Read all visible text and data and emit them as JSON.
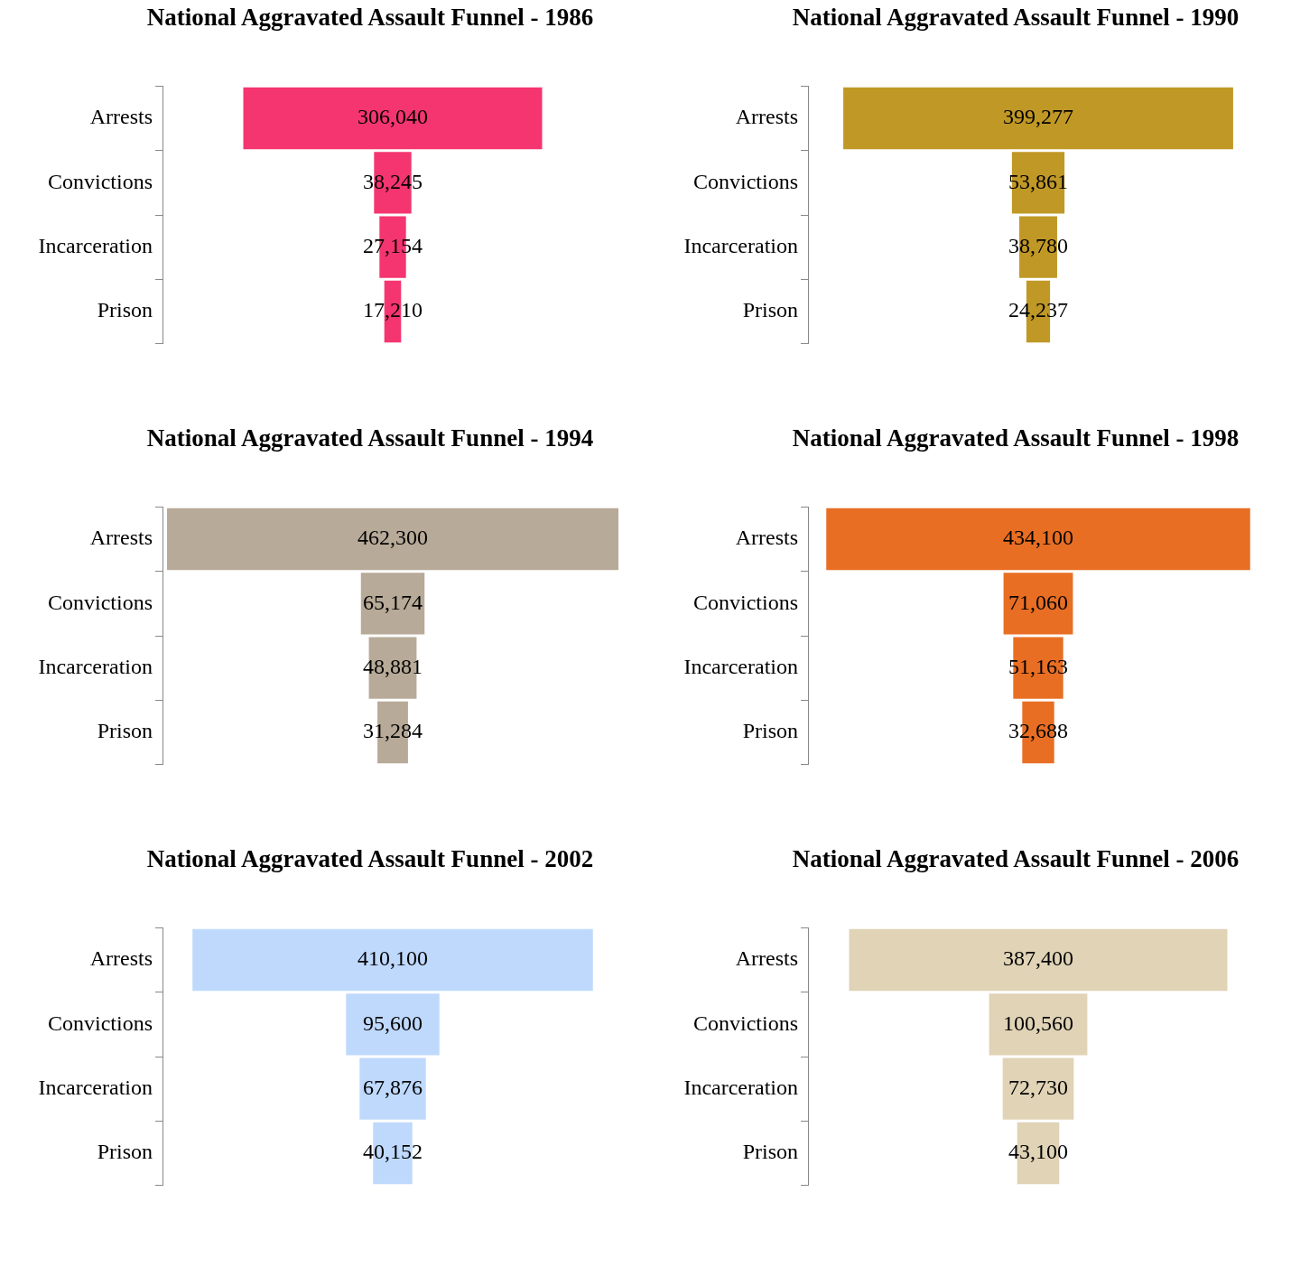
{
  "chart_data": [
    {
      "type": "other",
      "title": "National Aggravated Assault Funnel - 1986",
      "categories": [
        "Arrests",
        "Convictions",
        "Incarceration",
        "Prison"
      ],
      "values": [
        306040,
        38245,
        27154,
        17210
      ],
      "value_labels": [
        "306,040",
        "38,245",
        "27,154",
        "17,210"
      ],
      "color": "#f43570"
    },
    {
      "type": "other",
      "title": "National Aggravated Assault Funnel - 1990",
      "categories": [
        "Arrests",
        "Convictions",
        "Incarceration",
        "Prison"
      ],
      "values": [
        399277,
        53861,
        38780,
        24237
      ],
      "value_labels": [
        "399,277",
        "53,861",
        "38,780",
        "24,237"
      ],
      "color": "#c09826"
    },
    {
      "type": "other",
      "title": "National Aggravated Assault Funnel - 1994",
      "categories": [
        "Arrests",
        "Convictions",
        "Incarceration",
        "Prison"
      ],
      "values": [
        462300,
        65174,
        48881,
        31284
      ],
      "value_labels": [
        "462,300",
        "65,174",
        "48,881",
        "31,284"
      ],
      "color": "#b8aa98"
    },
    {
      "type": "other",
      "title": "National Aggravated Assault Funnel - 1998",
      "categories": [
        "Arrests",
        "Convictions",
        "Incarceration",
        "Prison"
      ],
      "values": [
        434100,
        71060,
        51163,
        32688
      ],
      "value_labels": [
        "434,100",
        "71,060",
        "51,163",
        "32,688"
      ],
      "color": "#e86e23"
    },
    {
      "type": "other",
      "title": "National Aggravated Assault Funnel - 2002",
      "categories": [
        "Arrests",
        "Convictions",
        "Incarceration",
        "Prison"
      ],
      "values": [
        410100,
        95600,
        67876,
        40152
      ],
      "value_labels": [
        "410,100",
        "95,600",
        "67,876",
        "40,152"
      ],
      "color": "#bfd9fd"
    },
    {
      "type": "other",
      "title": "National Aggravated Assault Funnel - 2006",
      "categories": [
        "Arrests",
        "Convictions",
        "Incarceration",
        "Prison"
      ],
      "values": [
        387400,
        100560,
        72730,
        43100
      ],
      "value_labels": [
        "387,400",
        "100,560",
        "72,730",
        "43,100"
      ],
      "color": "#e0d3b6"
    }
  ]
}
